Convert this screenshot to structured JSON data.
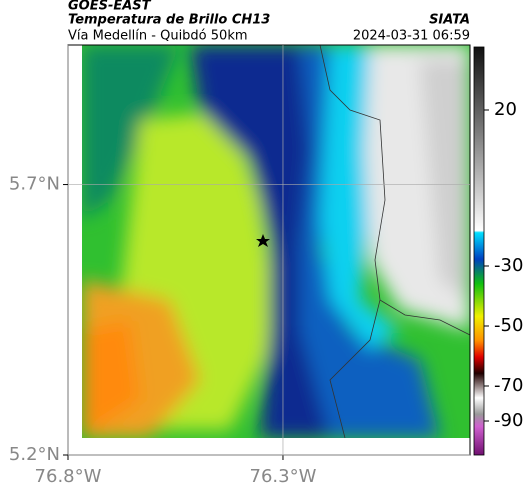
{
  "header": {
    "source": "GOES-EAST",
    "title": "Temperatura de Brillo CH13",
    "subtitle": "Vía Medellín - Quibdó 50km",
    "org": "SIATA",
    "timestamp": "2024-03-31 06:59"
  },
  "map": {
    "xlim": [
      -76.8,
      -75.865
    ],
    "ylim": [
      5.2,
      5.958
    ],
    "xticks": [
      {
        "value": -76.8,
        "label": "76.8°W"
      },
      {
        "value": -76.3,
        "label": "76.3°W"
      }
    ],
    "yticks": [
      {
        "value": 5.7,
        "label": "5.7°N"
      },
      {
        "value": 5.2,
        "label": "5.2°N"
      }
    ]
  },
  "colorbar": {
    "ticks": [
      20,
      -30,
      -50,
      -70,
      -90
    ]
  }
}
